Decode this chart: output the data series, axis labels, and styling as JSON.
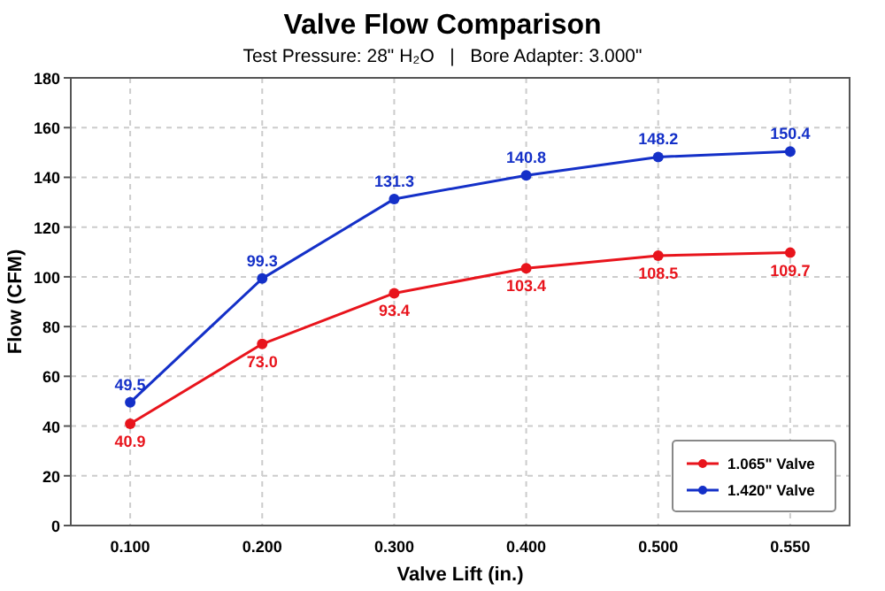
{
  "chart_data": {
    "type": "line",
    "title": "Valve Flow Comparison",
    "subtitle": "Test Pressure: 28\" H₂O   |   Bore Adapter: 3.000\"",
    "xlabel": "Valve Lift (in.)",
    "ylabel": "Flow (CFM)",
    "categories": [
      "0.100",
      "0.200",
      "0.300",
      "0.400",
      "0.500",
      "0.550"
    ],
    "series": [
      {
        "name": "1.065\" Valve",
        "color": "#e8141c",
        "values": [
          40.9,
          73.0,
          93.4,
          103.4,
          108.5,
          109.7
        ],
        "value_labels": [
          "40.9",
          "73.0",
          "93.4",
          "103.4",
          "108.5",
          "109.7"
        ]
      },
      {
        "name": "1.420\" Valve",
        "color": "#1430c8",
        "values": [
          49.5,
          99.3,
          131.3,
          140.8,
          148.2,
          150.4
        ],
        "value_labels": [
          "49.5",
          "99.3",
          "131.3",
          "140.8",
          "148.2",
          "150.4"
        ]
      }
    ],
    "ylim": [
      0,
      180
    ],
    "yticks": [
      0,
      20,
      40,
      60,
      80,
      100,
      120,
      140,
      160,
      180
    ],
    "grid": true,
    "legend": "bottom right",
    "marker": "circle",
    "line_style": "solid"
  }
}
